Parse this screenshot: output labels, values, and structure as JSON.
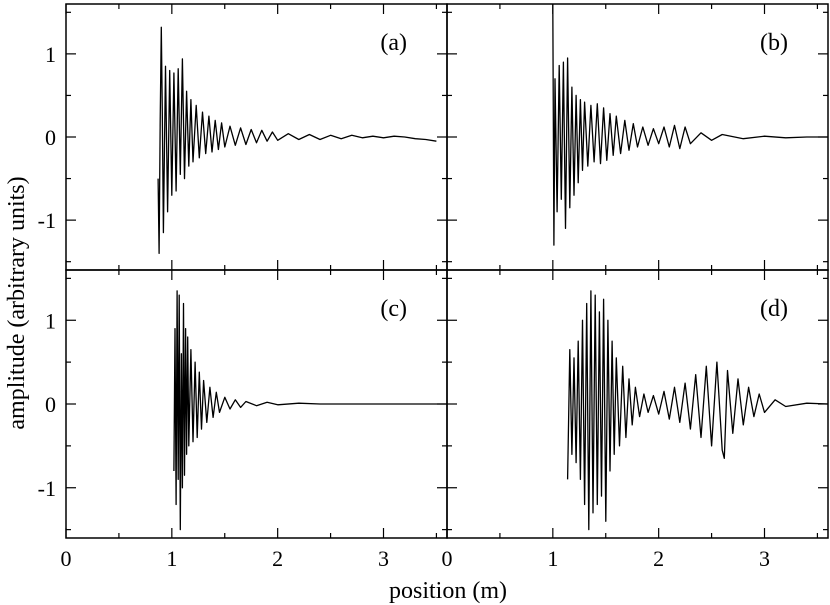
{
  "chart_data": {
    "type": "line",
    "xlabel": "position (m)",
    "ylabel": "amplitude (arbitrary units)",
    "xlim": [
      0,
      3.6
    ],
    "ylim": [
      -1.6,
      1.6
    ],
    "x_ticks": [
      0,
      1,
      2,
      3
    ],
    "x_tick_labels": [
      "0",
      "1",
      "2",
      "3"
    ],
    "y_ticks": [
      -1,
      0,
      1
    ],
    "y_tick_labels": [
      "-1",
      "0",
      "1"
    ],
    "grid": false,
    "legend": "none",
    "panels": [
      {
        "label": "(a)",
        "series": [
          {
            "x": [
              0.87,
              0.88,
              0.89,
              0.9,
              0.91,
              0.92,
              0.94,
              0.96,
              0.98,
              1.0,
              1.02,
              1.04,
              1.06,
              1.08,
              1.1,
              1.12,
              1.14,
              1.16,
              1.18,
              1.2,
              1.23,
              1.26,
              1.29,
              1.32,
              1.35,
              1.38,
              1.41,
              1.44,
              1.47,
              1.5,
              1.55,
              1.6,
              1.65,
              1.7,
              1.75,
              1.8,
              1.85,
              1.9,
              1.95,
              2.0,
              2.1,
              2.2,
              2.3,
              2.4,
              2.5,
              2.6,
              2.7,
              2.8,
              2.9,
              3.0,
              3.1,
              3.2,
              3.3,
              3.4,
              3.5
            ],
            "y": [
              -0.5,
              -1.4,
              0.2,
              1.32,
              0.3,
              -1.15,
              0.85,
              -0.9,
              0.8,
              -0.7,
              0.77,
              -0.65,
              0.82,
              -0.45,
              0.94,
              -0.5,
              0.55,
              -0.35,
              0.45,
              -0.3,
              0.38,
              -0.25,
              0.3,
              -0.2,
              0.25,
              -0.18,
              0.2,
              -0.15,
              0.17,
              -0.12,
              0.13,
              -0.1,
              0.11,
              -0.09,
              0.09,
              -0.07,
              0.08,
              -0.05,
              0.06,
              -0.04,
              0.04,
              -0.03,
              0.03,
              -0.03,
              0.02,
              -0.02,
              0.02,
              -0.01,
              0.01,
              -0.01,
              0.01,
              0.0,
              -0.02,
              -0.03,
              -0.05
            ]
          }
        ]
      },
      {
        "label": "(b)",
        "series": [
          {
            "x": [
              1.0,
              1.01,
              1.02,
              1.04,
              1.06,
              1.08,
              1.1,
              1.12,
              1.14,
              1.16,
              1.18,
              1.2,
              1.22,
              1.24,
              1.26,
              1.28,
              1.3,
              1.33,
              1.36,
              1.39,
              1.42,
              1.45,
              1.48,
              1.51,
              1.54,
              1.57,
              1.6,
              1.64,
              1.68,
              1.72,
              1.76,
              1.8,
              1.85,
              1.9,
              1.95,
              2.0,
              2.05,
              2.1,
              2.15,
              2.2,
              2.25,
              2.3,
              2.4,
              2.5,
              2.6,
              2.8,
              3.0,
              3.2,
              3.4,
              3.6
            ],
            "y": [
              1.6,
              -1.3,
              0.7,
              -0.9,
              0.86,
              -0.75,
              0.9,
              -1.1,
              0.95,
              -0.85,
              0.6,
              -0.7,
              0.5,
              -0.55,
              0.45,
              -0.4,
              0.42,
              -0.35,
              0.38,
              -0.3,
              0.4,
              -0.32,
              0.35,
              -0.28,
              0.28,
              -0.22,
              0.25,
              -0.2,
              0.2,
              -0.16,
              0.16,
              -0.12,
              0.12,
              -0.1,
              0.1,
              -0.08,
              0.12,
              -0.12,
              0.14,
              -0.14,
              0.12,
              -0.08,
              0.05,
              -0.04,
              0.03,
              -0.02,
              0.01,
              -0.01,
              0.0,
              0.0
            ]
          }
        ]
      },
      {
        "label": "(c)",
        "series": [
          {
            "x": [
              1.02,
              1.03,
              1.04,
              1.05,
              1.06,
              1.07,
              1.08,
              1.09,
              1.1,
              1.11,
              1.12,
              1.13,
              1.14,
              1.15,
              1.16,
              1.18,
              1.2,
              1.22,
              1.24,
              1.26,
              1.28,
              1.3,
              1.33,
              1.36,
              1.39,
              1.42,
              1.45,
              1.5,
              1.55,
              1.6,
              1.65,
              1.7,
              1.8,
              1.9,
              2.0,
              2.2,
              2.4,
              2.6,
              2.8,
              3.0,
              3.2,
              3.4,
              3.6
            ],
            "y": [
              -0.8,
              0.9,
              -1.2,
              1.35,
              -0.9,
              1.3,
              -1.5,
              0.6,
              -1.0,
              1.2,
              -0.85,
              0.9,
              -0.6,
              0.8,
              -0.5,
              0.65,
              -0.45,
              0.5,
              -0.4,
              0.38,
              -0.3,
              0.28,
              -0.22,
              0.2,
              -0.16,
              0.14,
              -0.1,
              0.08,
              -0.06,
              0.05,
              -0.04,
              0.03,
              -0.02,
              0.02,
              -0.01,
              0.01,
              0.0,
              0.0,
              0.0,
              0.0,
              0.0,
              0.0,
              0.0
            ]
          }
        ]
      },
      {
        "label": "(d)",
        "series": [
          {
            "x": [
              1.14,
              1.16,
              1.18,
              1.2,
              1.22,
              1.24,
              1.26,
              1.28,
              1.3,
              1.32,
              1.34,
              1.36,
              1.38,
              1.4,
              1.42,
              1.44,
              1.46,
              1.48,
              1.5,
              1.52,
              1.54,
              1.56,
              1.58,
              1.6,
              1.63,
              1.66,
              1.69,
              1.72,
              1.75,
              1.78,
              1.82,
              1.86,
              1.9,
              1.95,
              2.0,
              2.05,
              2.1,
              2.15,
              2.2,
              2.25,
              2.3,
              2.35,
              2.4,
              2.45,
              2.5,
              2.55,
              2.6,
              2.62,
              2.65,
              2.7,
              2.75,
              2.8,
              2.85,
              2.9,
              2.95,
              3.0,
              3.1,
              3.2,
              3.4,
              3.6
            ],
            "y": [
              -0.9,
              0.65,
              -0.6,
              0.55,
              -0.7,
              0.75,
              -0.9,
              1.0,
              -1.2,
              1.2,
              -1.5,
              1.35,
              -1.3,
              1.3,
              -1.2,
              1.1,
              -1.1,
              1.25,
              -1.4,
              1.0,
              -0.8,
              0.75,
              -0.6,
              0.55,
              -0.5,
              0.45,
              -0.4,
              0.3,
              -0.25,
              0.2,
              -0.15,
              0.12,
              -0.1,
              0.1,
              -0.12,
              0.15,
              -0.18,
              0.2,
              -0.22,
              0.25,
              -0.3,
              0.35,
              -0.4,
              0.45,
              -0.5,
              0.5,
              -0.55,
              -0.65,
              0.4,
              -0.35,
              0.3,
              -0.25,
              0.2,
              -0.15,
              0.12,
              -0.1,
              0.05,
              -0.03,
              0.01,
              0.0
            ]
          }
        ]
      }
    ]
  }
}
